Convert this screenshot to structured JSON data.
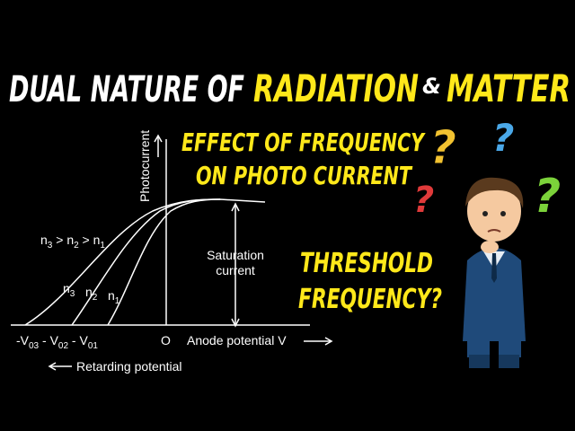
{
  "title": {
    "part1": "DUAL NATURE OF",
    "part2": "RADIATION",
    "part3": "&",
    "part4": "MATTER"
  },
  "headings": {
    "effect_line1": "EFFECT OF FREQUENCY",
    "effect_line2": "ON PHOTO CURRENT",
    "threshold_line1": "THRESHOLD",
    "threshold_line2": "FREQUENCY?"
  },
  "diagram": {
    "y_axis_label": "Photocurrent",
    "order_label": [
      {
        "base": "n",
        "sub": "3"
      },
      {
        "base": " > n",
        "sub": "2"
      },
      {
        "base": " > n",
        "sub": "1"
      }
    ],
    "curve_labels": [
      {
        "base": "n",
        "sub": "3"
      },
      {
        "base": "n",
        "sub": "2"
      },
      {
        "base": "n",
        "sub": "1"
      }
    ],
    "saturation_label": [
      "Saturation",
      "current"
    ],
    "stopping_labels": [
      {
        "base": "-V",
        "sub": "03"
      },
      {
        "base": " - V",
        "sub": "02"
      },
      {
        "base": " - V",
        "sub": "01"
      }
    ],
    "origin_label": "O",
    "x_axis_label": "Anode potential V",
    "retarding_label": "Retarding potential"
  },
  "question_marks": [
    "?",
    "?",
    "?",
    "?"
  ]
}
